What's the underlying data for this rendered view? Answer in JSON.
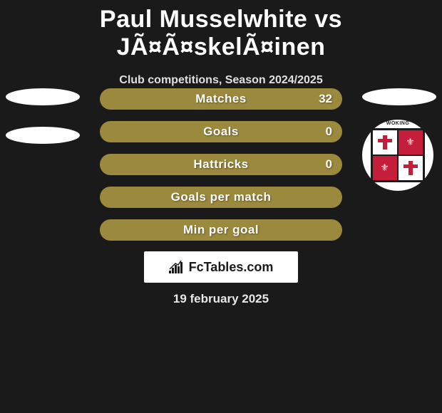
{
  "header": {
    "title": "Paul Musselwhite vs JÃ¤Ã¤skelÃ¤inen",
    "subtitle": "Club competitions, Season 2024/2025"
  },
  "stats": [
    {
      "label": "Matches",
      "value": "32",
      "inner_width": 20
    },
    {
      "label": "Goals",
      "value": "0",
      "inner_width": 0
    },
    {
      "label": "Hattricks",
      "value": "0",
      "inner_width": 0
    },
    {
      "label": "Goals per match",
      "value": "",
      "inner_width": 0
    },
    {
      "label": "Min per goal",
      "value": "",
      "inner_width": 0
    }
  ],
  "branding": {
    "text": "FcTables.com"
  },
  "date": "19 february 2025",
  "crest": {
    "top_text": "WOKING"
  },
  "colors": {
    "background": "#1a1a1a",
    "bar_fill": "#9b8a3e",
    "bar_inner": "#7a6d31",
    "crest_red": "#c41e3a"
  }
}
